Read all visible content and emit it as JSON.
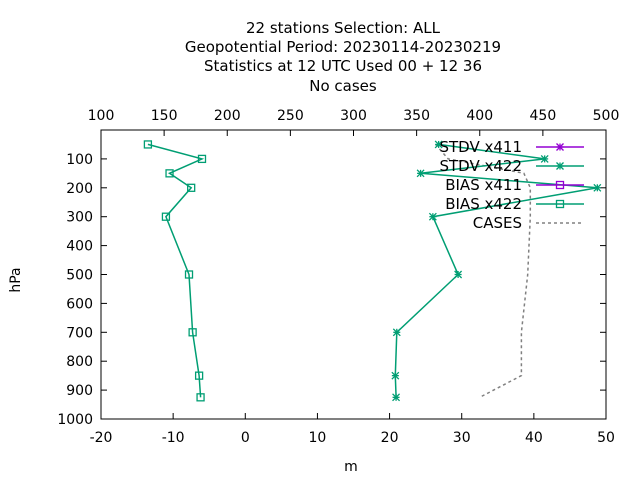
{
  "chart_data": {
    "type": "line",
    "title": [
      "22 stations Selection: ALL",
      "Geopotential  Period: 20230114-20230219",
      "Statistics at 12 UTC  Used  00 + 12 36",
      "No cases"
    ],
    "xlabel": "m",
    "ylabel": "hPa",
    "x_range": [
      -20,
      50
    ],
    "y_range": [
      0,
      1000
    ],
    "y_inverted": true,
    "x_ticks": [
      "-20",
      "-10",
      "0",
      "10",
      "20",
      "30",
      "40",
      "50"
    ],
    "y_ticks": [
      "100",
      "200",
      "300",
      "400",
      "500",
      "600",
      "700",
      "800",
      "900",
      "1000"
    ],
    "x2_range": [
      100,
      500
    ],
    "x2_ticks": [
      "100",
      "150",
      "200",
      "250",
      "300",
      "350",
      "400",
      "450",
      "500"
    ],
    "grid": false,
    "legend_position": "top-right",
    "levels": [
      50,
      100,
      150,
      200,
      300,
      500,
      700,
      850,
      925
    ],
    "series": [
      {
        "name": "STDV x411",
        "color": "#9400d3",
        "marker": "star",
        "axis": "x",
        "values": [
          null,
          null,
          null,
          null,
          null,
          null,
          null,
          null,
          null
        ]
      },
      {
        "name": "STDV x422",
        "color": "#009e73",
        "marker": "star",
        "axis": "x",
        "values": [
          26.8,
          41.5,
          24.3,
          48.8,
          26.0,
          29.5,
          21.0,
          20.8,
          20.9
        ]
      },
      {
        "name": "BIAS x411",
        "color": "#9400d3",
        "marker": "square",
        "axis": "x",
        "values": [
          null,
          null,
          null,
          null,
          null,
          null,
          null,
          null,
          null
        ]
      },
      {
        "name": "BIAS x422",
        "color": "#009e73",
        "marker": "square",
        "axis": "x",
        "values": [
          -13.5,
          -6.0,
          -10.5,
          -7.5,
          -11.0,
          -7.8,
          -7.3,
          -6.4,
          -6.2
        ]
      },
      {
        "name": "CASES",
        "color": "#808080",
        "marker": "none",
        "dashed": true,
        "axis": "x2",
        "values": [
          365,
          375,
          435,
          440,
          440,
          438,
          433,
          433,
          400
        ]
      }
    ]
  }
}
